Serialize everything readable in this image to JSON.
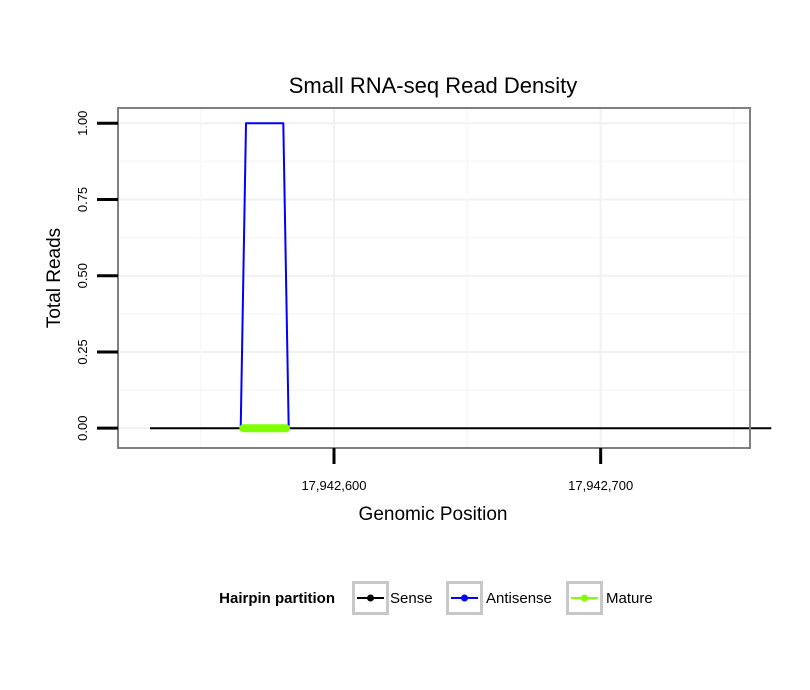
{
  "chart_data": {
    "type": "line",
    "title": "Small RNA-seq Read Density",
    "xlabel": "Genomic Position",
    "ylabel": "Total Reads",
    "xlim": [
      17942519,
      17942756
    ],
    "ylim": [
      -0.065,
      1.05
    ],
    "x_ticks": [
      {
        "value": 17942600,
        "label": "17,942,600"
      },
      {
        "value": 17942700,
        "label": "17,942,700"
      }
    ],
    "y_ticks": [
      {
        "value": 0.0,
        "label": "0.00"
      },
      {
        "value": 0.25,
        "label": "0.25"
      },
      {
        "value": 0.5,
        "label": "0.50"
      },
      {
        "value": 0.75,
        "label": "0.75"
      },
      {
        "value": 1.0,
        "label": "1.00"
      }
    ],
    "series": [
      {
        "name": "Sense",
        "color": "#000000",
        "x": [
          17942531,
          17942764
        ],
        "y": [
          0,
          0
        ]
      },
      {
        "name": "Antisense",
        "color": "#0000ff",
        "x": [
          17942565,
          17942567,
          17942581,
          17942583
        ],
        "y": [
          0,
          1,
          1,
          0
        ]
      },
      {
        "name": "Mature",
        "color": "#7fff00",
        "x": [
          17942566,
          17942582
        ],
        "y": [
          0,
          0
        ]
      }
    ],
    "legend": {
      "title": "Hairpin partition",
      "position": "bottom"
    }
  }
}
